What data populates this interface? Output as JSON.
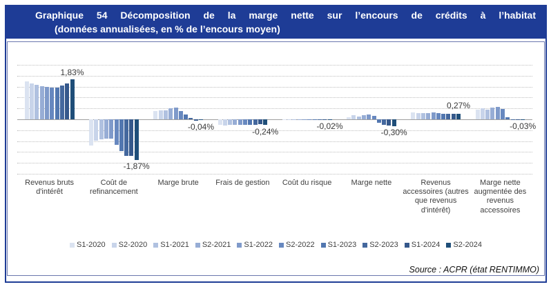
{
  "title": {
    "line1": "Graphique 54 Décomposition de la marge nette sur l’encours de crédits à l’habitat",
    "line2": "(données annualisées, en % de l’encours moyen)"
  },
  "source_text": "Source : ACPR (état RENTIMMO)",
  "colors": {
    "banner_blue": "#1e3c96",
    "figure_border": "#1e3c96",
    "chartbox_border": "#6a76ad",
    "gridline": "#bdbdbd",
    "zero_line": "#9e9e9e",
    "label_text": "#383838",
    "series": [
      "#dbe3f1",
      "#c8d4ea",
      "#b0c1e0",
      "#97add5",
      "#7f9aca",
      "#6788bf",
      "#5277b0",
      "#44689e",
      "#35588b",
      "#1f4e79"
    ]
  },
  "chart_data": {
    "type": "bar",
    "unit": "%",
    "ylim": [
      -2.5,
      2.5
    ],
    "grid_step": 0.5,
    "grid": true,
    "legend_position": "bottom",
    "categories": [
      "Revenus bruts d'intérêt",
      "Coût de refinancement",
      "Marge brute",
      "Frais de gestion",
      "Coût du risque",
      "Marge nette",
      "Revenus accessoires (autres que revenus d'intérêt)",
      "Marge nette augmentée des revenus accessoires"
    ],
    "series": [
      {
        "name": "S1-2020",
        "values": [
          1.74,
          -1.2,
          0.38,
          -0.26,
          -0.03,
          0.1,
          0.33,
          0.46
        ]
      },
      {
        "name": "S2-2020",
        "values": [
          1.66,
          -0.98,
          0.42,
          -0.27,
          -0.04,
          0.18,
          0.28,
          0.5
        ]
      },
      {
        "name": "S1-2021",
        "values": [
          1.58,
          -0.92,
          0.42,
          -0.26,
          -0.01,
          0.14,
          0.3,
          0.45
        ]
      },
      {
        "name": "S2-2021",
        "values": [
          1.52,
          -0.87,
          0.5,
          -0.26,
          -0.01,
          0.2,
          0.3,
          0.53
        ]
      },
      {
        "name": "S1-2022",
        "values": [
          1.48,
          -0.89,
          0.53,
          -0.25,
          -0.02,
          0.22,
          0.31,
          0.56
        ]
      },
      {
        "name": "S2-2022",
        "values": [
          1.46,
          -1.17,
          0.38,
          -0.25,
          -0.03,
          0.16,
          0.28,
          0.47
        ]
      },
      {
        "name": "S1-2023",
        "values": [
          1.47,
          -1.44,
          0.21,
          -0.24,
          -0.01,
          -0.15,
          0.25,
          0.1
        ]
      },
      {
        "name": "S2-2023",
        "values": [
          1.55,
          -1.66,
          0.08,
          -0.24,
          0.01,
          -0.25,
          0.24,
          -0.03
        ]
      },
      {
        "name": "S1-2024",
        "values": [
          1.64,
          -1.69,
          -0.05,
          -0.23,
          -0.01,
          -0.27,
          0.25,
          -0.03
        ]
      },
      {
        "name": "S2-2024",
        "values": [
          1.83,
          -1.87,
          -0.04,
          -0.24,
          -0.02,
          -0.3,
          0.27,
          -0.03
        ]
      }
    ],
    "data_labels": [
      {
        "category": 0,
        "series": "S2-2024",
        "text": "1,83%",
        "position": "above"
      },
      {
        "category": 1,
        "series": "S2-2024",
        "text": "-1,87%",
        "position": "below"
      },
      {
        "category": 2,
        "series": "S2-2024",
        "text": "-0,04%",
        "position": "below"
      },
      {
        "category": 3,
        "series": "S2-2024",
        "text": "-0,24%",
        "position": "below"
      },
      {
        "category": 4,
        "series": "S2-2024",
        "text": "-0,02%",
        "position": "below"
      },
      {
        "category": 5,
        "series": "S2-2024",
        "text": "-0,30%",
        "position": "below"
      },
      {
        "category": 6,
        "series": "S2-2024",
        "text": "0,27%",
        "position": "above"
      },
      {
        "category": 7,
        "series": "S2-2024",
        "text": "-0,03%",
        "position": "below"
      }
    ]
  }
}
